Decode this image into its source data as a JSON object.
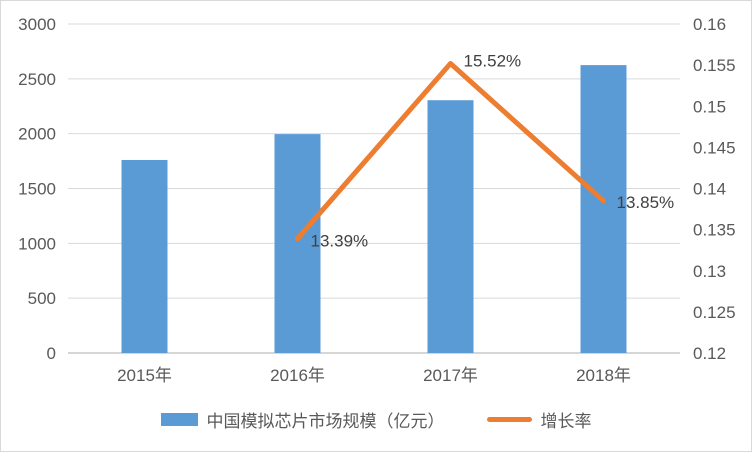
{
  "chart_data": {
    "type": "combo",
    "categories": [
      "2015年",
      "2016年",
      "2017年",
      "2018年"
    ],
    "series": [
      {
        "name": "中国模拟芯片市场规模（亿元）",
        "type": "bar",
        "axis": "left",
        "color": "#5B9BD5",
        "values": [
          1760,
          1996,
          2305,
          2625
        ]
      },
      {
        "name": "增长率",
        "type": "line",
        "axis": "right",
        "color": "#ED7D31",
        "values": [
          null,
          0.1339,
          0.1552,
          0.1385
        ],
        "point_labels": [
          null,
          "13.39%",
          "15.52%",
          "13.85%"
        ]
      }
    ],
    "left_axis": {
      "min": 0,
      "max": 3000,
      "step": 500,
      "ticks": [
        "3000",
        "2500",
        "2000",
        "1500",
        "1000",
        "500",
        "0"
      ]
    },
    "right_axis": {
      "min": 0.12,
      "max": 0.16,
      "step": 0.005,
      "ticks": [
        "0.16",
        "0.155",
        "0.15",
        "0.145",
        "0.14",
        "0.135",
        "0.13",
        "0.125",
        "0.12"
      ]
    },
    "grid": true,
    "legend_position": "bottom",
    "title": "",
    "xlabel": "",
    "ylabel": ""
  },
  "colors": {
    "bar": "#5B9BD5",
    "line": "#ED7D31",
    "gridline": "#d9d9d9",
    "axis_line": "#c8c8c8",
    "tick_text": "#595959",
    "point_label_text": "#404040",
    "border": "#d9d9d9"
  }
}
